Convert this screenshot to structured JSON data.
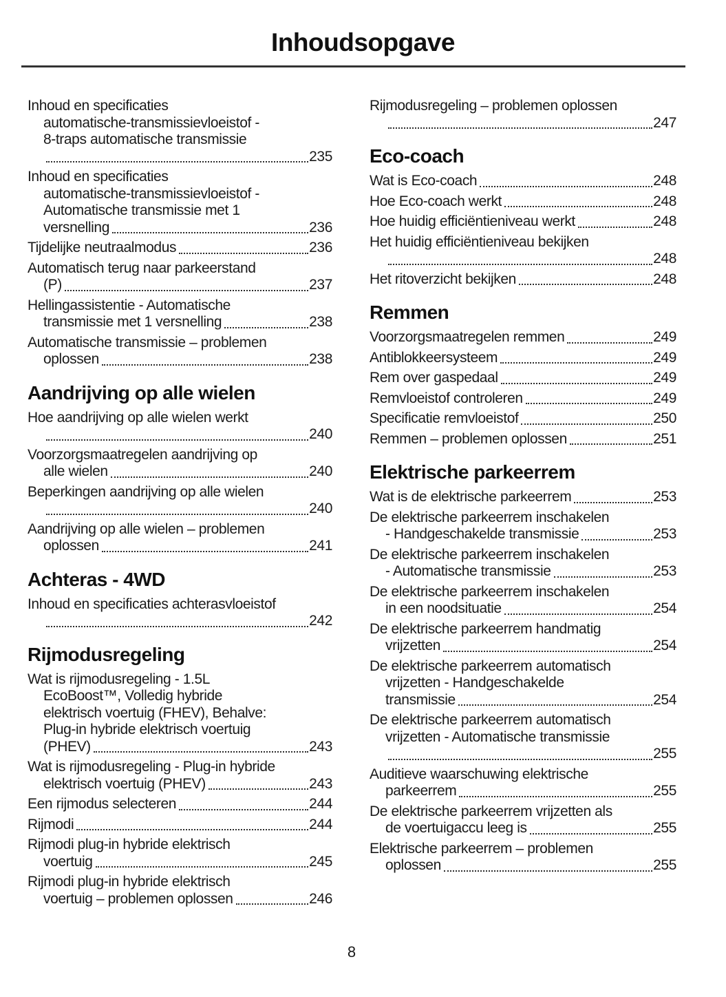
{
  "page_title": "Inhoudsopgave",
  "page_number": "8",
  "colors": {
    "text": "#1a1a1a",
    "rule": "#333333",
    "dots": "#2b2b2b"
  },
  "columns": {
    "left": {
      "sections": [
        {
          "heading": null,
          "entries": [
            {
              "lines": [
                "Inhoud en specificaties",
                "automatische-transmissievloeistof -",
                "8-traps automatische transmissie"
              ],
              "tail": "",
              "page": "235"
            },
            {
              "lines": [
                "Inhoud en specificaties",
                "automatische-transmissievloeistof -",
                "Automatische transmissie met 1"
              ],
              "tail": "versnelling",
              "page": "236"
            },
            {
              "lines": [],
              "tail": "Tijdelijke neutraalmodus",
              "page": "236"
            },
            {
              "lines": [
                "Automatisch terug naar parkeerstand"
              ],
              "tail": "(P)",
              "page": "237"
            },
            {
              "lines": [
                "Hellingassistentie - Automatische"
              ],
              "tail": "transmissie met 1 versnelling",
              "page": "238"
            },
            {
              "lines": [
                "Automatische transmissie – problemen"
              ],
              "tail": "oplossen",
              "page": "238"
            }
          ]
        },
        {
          "heading": "Aandrijving op alle wielen",
          "entries": [
            {
              "lines": [
                "Hoe aandrijving op alle wielen werkt"
              ],
              "tail": "",
              "page": "240"
            },
            {
              "lines": [
                "Voorzorgsmaatregelen aandrijving op"
              ],
              "tail": "alle wielen",
              "page": "240"
            },
            {
              "lines": [
                "Beperkingen aandrijving op alle wielen"
              ],
              "tail": "",
              "page": "240"
            },
            {
              "lines": [
                "Aandrijving op alle wielen – problemen"
              ],
              "tail": "oplossen",
              "page": "241"
            }
          ]
        },
        {
          "heading": "Achteras - 4WD",
          "entries": [
            {
              "lines": [
                "Inhoud en specificaties achterasvloeistof"
              ],
              "tail": "",
              "page": "242"
            }
          ]
        },
        {
          "heading": "Rijmodusregeling",
          "entries": [
            {
              "lines": [
                "Wat is rijmodusregeling - 1.5L",
                "EcoBoost™, Volledig hybride",
                "elektrisch voertuig (FHEV), Behalve:",
                "Plug-in hybride elektrisch voertuig"
              ],
              "tail": "(PHEV)",
              "page": "243"
            },
            {
              "lines": [
                "Wat is rijmodusregeling - Plug-in hybride"
              ],
              "tail": "elektrisch voertuig (PHEV)",
              "page": "243"
            },
            {
              "lines": [],
              "tail": "Een rijmodus selecteren",
              "page": "244"
            },
            {
              "lines": [],
              "tail": "Rijmodi",
              "page": "244"
            },
            {
              "lines": [
                "Rijmodi plug-in hybride elektrisch"
              ],
              "tail": "voertuig",
              "page": "245"
            },
            {
              "lines": [
                "Rijmodi plug-in hybride elektrisch"
              ],
              "tail": "voertuig – problemen oplossen",
              "page": "246"
            }
          ]
        }
      ]
    },
    "right": {
      "sections": [
        {
          "heading": null,
          "entries": [
            {
              "lines": [
                "Rijmodusregeling – problemen oplossen"
              ],
              "tail": "",
              "page": "247"
            }
          ]
        },
        {
          "heading": "Eco-coach",
          "entries": [
            {
              "lines": [],
              "tail": "Wat is Eco-coach",
              "page": "248"
            },
            {
              "lines": [],
              "tail": "Hoe Eco-coach werkt",
              "page": "248"
            },
            {
              "lines": [],
              "tail": "Hoe huidig efficiëntieniveau werkt",
              "page": "248"
            },
            {
              "lines": [
                "Het huidig efficiëntieniveau bekijken"
              ],
              "tail": "",
              "page": "248"
            },
            {
              "lines": [],
              "tail": "Het ritoverzicht bekijken",
              "page": "248"
            }
          ]
        },
        {
          "heading": "Remmen",
          "entries": [
            {
              "lines": [],
              "tail": "Voorzorgsmaatregelen remmen",
              "page": "249"
            },
            {
              "lines": [],
              "tail": "Antiblokkeersysteem",
              "page": "249"
            },
            {
              "lines": [],
              "tail": "Rem over gaspedaal",
              "page": "249"
            },
            {
              "lines": [],
              "tail": "Remvloeistof controleren",
              "page": "249"
            },
            {
              "lines": [],
              "tail": "Specificatie remvloeistof",
              "page": "250"
            },
            {
              "lines": [],
              "tail": "Remmen – problemen oplossen",
              "page": "251"
            }
          ]
        },
        {
          "heading": "Elektrische parkeerrem",
          "entries": [
            {
              "lines": [],
              "tail": "Wat is de elektrische parkeerrem",
              "page": "253"
            },
            {
              "lines": [
                "De elektrische parkeerrem inschakelen"
              ],
              "tail": "- Handgeschakelde transmissie",
              "page": "253"
            },
            {
              "lines": [
                "De elektrische parkeerrem inschakelen"
              ],
              "tail": "- Automatische transmissie",
              "page": "253"
            },
            {
              "lines": [
                "De elektrische parkeerrem inschakelen"
              ],
              "tail": "in een noodsituatie",
              "page": "254"
            },
            {
              "lines": [
                "De elektrische parkeerrem handmatig"
              ],
              "tail": "vrijzetten",
              "page": "254"
            },
            {
              "lines": [
                "De elektrische parkeerrem automatisch",
                "vrijzetten - Handgeschakelde"
              ],
              "tail": "transmissie",
              "page": "254"
            },
            {
              "lines": [
                "De elektrische parkeerrem automatisch",
                "vrijzetten - Automatische transmissie"
              ],
              "tail": "",
              "page": "255"
            },
            {
              "lines": [
                "Auditieve waarschuwing elektrische"
              ],
              "tail": "parkeerrem",
              "page": "255"
            },
            {
              "lines": [
                "De elektrische parkeerrem vrijzetten als"
              ],
              "tail": "de voertuigaccu leeg is",
              "page": "255"
            },
            {
              "lines": [
                "Elektrische parkeerrem – problemen"
              ],
              "tail": "oplossen",
              "page": "255"
            }
          ]
        }
      ]
    }
  }
}
